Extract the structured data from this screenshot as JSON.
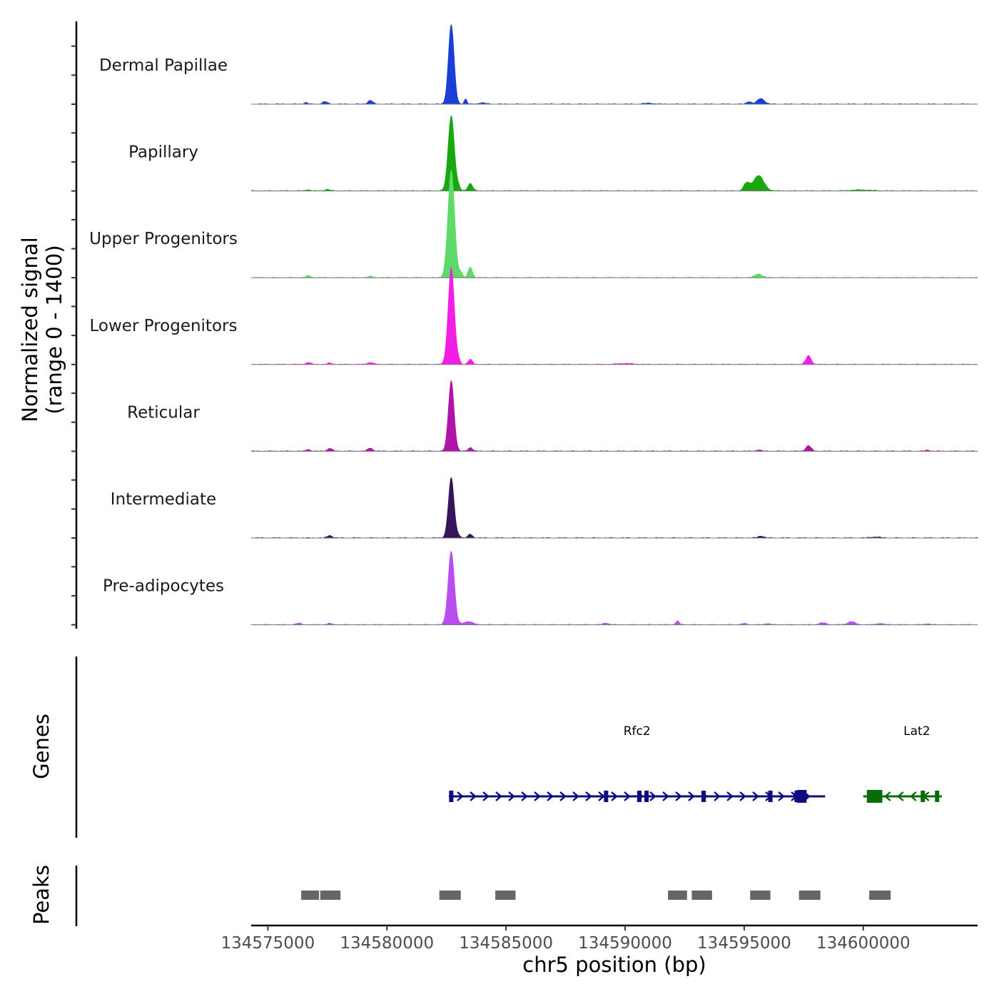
{
  "chart_data": {
    "type": "area",
    "chromosome": "chr5",
    "xlabel": "chr5 position (bp)",
    "ylabel": "Normalized signal",
    "ylabel_range": "(range 0 - 1400)",
    "ylim": [
      0,
      1400
    ],
    "xlim": [
      134574300,
      134604800
    ],
    "x_ticks": [
      134575000,
      134580000,
      134585000,
      134590000,
      134595000,
      134600000
    ],
    "x_tick_labels": [
      "134575000",
      "134580000",
      "134585000",
      "134590000",
      "134595000",
      "134600000"
    ],
    "tracks": [
      {
        "name": "Dermal Papillae",
        "color": "#1a3fd6",
        "peaks": [
          [
            134582700,
            1300,
            120
          ],
          [
            134583300,
            80,
            60
          ],
          [
            134579300,
            60,
            100
          ],
          [
            134577400,
            40,
            100
          ],
          [
            134576600,
            25,
            80
          ],
          [
            134595700,
            90,
            150
          ],
          [
            134595200,
            40,
            100
          ],
          [
            134584000,
            20,
            150
          ],
          [
            134591000,
            15,
            200
          ]
        ]
      },
      {
        "name": "Papillary",
        "color": "#17a80f",
        "peaks": [
          [
            134582700,
            1230,
            130
          ],
          [
            134583500,
            120,
            100
          ],
          [
            134595600,
            250,
            220
          ],
          [
            134595100,
            120,
            120
          ],
          [
            134583000,
            60,
            80
          ],
          [
            134577500,
            25,
            100
          ],
          [
            134576700,
            20,
            80
          ],
          [
            134599900,
            15,
            400
          ]
        ]
      },
      {
        "name": "Upper Progenitors",
        "color": "#5fd96a",
        "peaks": [
          [
            134582700,
            1750,
            140
          ],
          [
            134583500,
            170,
            90
          ],
          [
            134583100,
            80,
            80
          ],
          [
            134595600,
            60,
            150
          ],
          [
            134576700,
            30,
            100
          ],
          [
            134579300,
            20,
            100
          ]
        ]
      },
      {
        "name": "Lower Progenitors",
        "color": "#f21ee6",
        "peaks": [
          [
            134582700,
            1580,
            130
          ],
          [
            134583500,
            80,
            90
          ],
          [
            134583000,
            60,
            80
          ],
          [
            134597700,
            140,
            110
          ],
          [
            134579300,
            30,
            120
          ],
          [
            134576700,
            30,
            100
          ],
          [
            134577600,
            20,
            100
          ],
          [
            134590000,
            15,
            300
          ]
        ]
      },
      {
        "name": "Reticular",
        "color": "#b013a8",
        "peaks": [
          [
            134582700,
            1150,
            120
          ],
          [
            134583500,
            60,
            90
          ],
          [
            134597700,
            90,
            110
          ],
          [
            134579300,
            50,
            100
          ],
          [
            134577600,
            45,
            100
          ],
          [
            134576700,
            30,
            80
          ],
          [
            134595600,
            20,
            100
          ],
          [
            134602700,
            15,
            100
          ]
        ]
      },
      {
        "name": "Intermediate",
        "color": "#37135c",
        "peaks": [
          [
            134582700,
            980,
            120
          ],
          [
            134583500,
            60,
            90
          ],
          [
            134583000,
            40,
            80
          ],
          [
            134577600,
            40,
            100
          ],
          [
            134595700,
            30,
            120
          ],
          [
            134600500,
            15,
            200
          ]
        ]
      },
      {
        "name": "Pre-adipocytes",
        "color": "#b94ef0",
        "peaks": [
          [
            134582700,
            1200,
            130
          ],
          [
            134583400,
            50,
            200
          ],
          [
            134592200,
            55,
            80
          ],
          [
            134599500,
            50,
            150
          ],
          [
            134598300,
            30,
            150
          ],
          [
            134576300,
            25,
            100
          ],
          [
            134577600,
            20,
            100
          ],
          [
            134589200,
            25,
            120
          ],
          [
            134595000,
            20,
            100
          ],
          [
            134596000,
            20,
            100
          ],
          [
            134600700,
            20,
            150
          ],
          [
            134602700,
            15,
            100
          ]
        ]
      }
    ],
    "genes": [
      {
        "name": "Rfc2",
        "strand": "+",
        "color": "#0d0d80",
        "start": 134582600,
        "end": 134598400,
        "thick_blocks": [
          [
            134597200,
            134597600
          ]
        ],
        "exons": [
          134582700,
          134589200,
          134590600,
          134590900,
          134593300,
          134596100,
          134597200
        ]
      },
      {
        "name": "Lat2",
        "strand": "-",
        "color": "#0a6b0a",
        "start": 134600000,
        "end": 134603300,
        "thick_blocks": [
          [
            134600150,
            134600800
          ]
        ],
        "exons": [
          134602500,
          134603100
        ]
      }
    ],
    "peak_regions": [
      [
        134576400,
        134577150
      ],
      [
        134577200,
        134578050
      ],
      [
        134582200,
        134583100
      ],
      [
        134584550,
        134585400
      ],
      [
        134591800,
        134592600
      ],
      [
        134592800,
        134593650
      ],
      [
        134595250,
        134596100
      ],
      [
        134597300,
        134598200
      ],
      [
        134600250,
        134601150
      ]
    ],
    "panel_labels": {
      "genes": "Genes",
      "peaks": "Peaks"
    }
  }
}
